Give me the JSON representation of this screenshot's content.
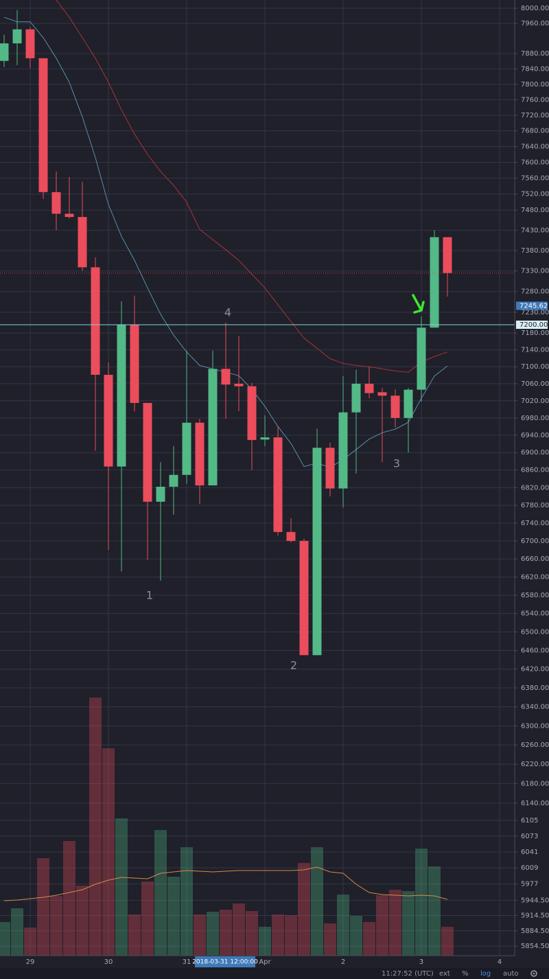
{
  "chart_data": {
    "type": "candlestick",
    "log_scale": true,
    "grid": true,
    "up_color": "#53b987",
    "down_color": "#eb4d5c",
    "background": "#1f2029",
    "grid_color": "#33354a",
    "categories": [
      null,
      null,
      "29",
      null,
      null,
      null,
      null,
      null,
      "30",
      null,
      null,
      null,
      null,
      null,
      "31",
      null,
      null,
      null,
      null,
      null,
      "Apr",
      null,
      null,
      null,
      null,
      null,
      "2",
      null,
      null,
      null,
      null,
      null,
      "3",
      null,
      null,
      null,
      null,
      null,
      "4"
    ],
    "open": [
      7861,
      7907,
      7944,
      7868,
      7525,
      7471,
      7463,
      7339,
      7081,
      6868,
      7200,
      7015,
      6788,
      6822,
      6849,
      6969,
      6825,
      7095,
      7060,
      7054,
      6930,
      6935,
      6720,
      6700,
      6450,
      6911,
      6818,
      6993,
      7060,
      7040,
      7032,
      6980,
      7046,
      7193,
      7413,
      null,
      null,
      null,
      null
    ],
    "high": [
      7930,
      7995,
      7950,
      7868,
      7577,
      7563,
      7551,
      7363,
      7110,
      7256,
      7270,
      7015,
      6878,
      6915,
      7138,
      6978,
      7138,
      7205,
      7173,
      7062,
      6986,
      6961,
      6751,
      6705,
      6955,
      6923,
      7078,
      7093,
      7101,
      7050,
      7047,
      7050,
      7220,
      7430,
      7413,
      null,
      null,
      null,
      null
    ],
    "low": [
      7845,
      7850,
      7842,
      7508,
      7430,
      7459,
      7330,
      6904,
      6680,
      6632,
      6995,
      6658,
      6612,
      6759,
      6829,
      6783,
      6825,
      6978,
      6996,
      6860,
      6915,
      6712,
      6697,
      6450,
      6450,
      6800,
      6775,
      6852,
      7026,
      6878,
      6958,
      6900,
      7018,
      7193,
      7268,
      null,
      null,
      null,
      null
    ],
    "close": [
      7907,
      7944,
      7868,
      7525,
      7471,
      7463,
      7339,
      7081,
      6868,
      7200,
      7015,
      6788,
      6822,
      6849,
      6969,
      6825,
      7095,
      7058,
      7054,
      6929,
      6935,
      6720,
      6700,
      6450,
      6911,
      6818,
      6993,
      7060,
      7038,
      7032,
      6980,
      7046,
      7193,
      7413,
      7325,
      null,
      null,
      null,
      null
    ],
    "moving_averages": [
      {
        "color": "#5a8fae",
        "values": [
          7976,
          7964,
          7964,
          7922,
          7868,
          7805,
          7716,
          7612,
          7494,
          7415,
          7356,
          7289,
          7225,
          7175,
          7135,
          7103,
          7095,
          7087,
          7079,
          7047,
          7007,
          6960,
          6921,
          6868,
          6876,
          6866,
          6884,
          6907,
          6931,
          6946,
          6954,
          6970,
          7026,
          7078,
          7102,
          null,
          null,
          null,
          null
        ]
      },
      {
        "color": "#a8343a",
        "values": [
          null,
          null,
          null,
          null,
          8022,
          7976,
          7922,
          7868,
          7805,
          7734,
          7672,
          7620,
          7577,
          7542,
          7500,
          7432,
          7407,
          7382,
          7356,
          7322,
          7289,
          7248,
          7208,
          7168,
          7144,
          7119,
          7108,
          7103,
          7100,
          7095,
          7090,
          7087,
          7111,
          7124,
          7135,
          null,
          null,
          null,
          null
        ]
      }
    ],
    "volume": {
      "values": [
        49,
        69,
        41,
        142,
        87,
        167,
        102,
        376,
        302,
        200,
        60,
        108,
        183,
        115,
        158,
        60,
        64,
        67,
        76,
        65,
        42,
        60,
        59,
        135,
        158,
        47,
        89,
        58,
        49,
        88,
        96,
        94,
        156,
        130,
        42,
        null,
        null,
        null,
        null
      ],
      "ma_color": "#d9894a",
      "ma_values": [
        80,
        81,
        83,
        85,
        88,
        92,
        96,
        104,
        110,
        114,
        113,
        112,
        120,
        122,
        124,
        123,
        122,
        123,
        124,
        124,
        124,
        124,
        124,
        125,
        129,
        122,
        120,
        104,
        92,
        89,
        88,
        87,
        88,
        87,
        82,
        null,
        null,
        null,
        null
      ]
    },
    "ylim": [
      5836,
      8022
    ],
    "yticks": [
      {
        "value": 8000,
        "label": "8000.00"
      },
      {
        "value": 7960,
        "label": "7960.00"
      },
      {
        "value": 7880,
        "label": "7880.00"
      },
      {
        "value": 7840,
        "label": "7840.00"
      },
      {
        "value": 7800,
        "label": "7800.00"
      },
      {
        "value": 7760,
        "label": "7760.00"
      },
      {
        "value": 7720,
        "label": "7720.00"
      },
      {
        "value": 7680,
        "label": "7680.00"
      },
      {
        "value": 7640,
        "label": "7640.00"
      },
      {
        "value": 7600,
        "label": "7600.00"
      },
      {
        "value": 7560,
        "label": "7560.00"
      },
      {
        "value": 7520,
        "label": "7520.00"
      },
      {
        "value": 7480,
        "label": "7480.00"
      },
      {
        "value": 7430,
        "label": "7430.00"
      },
      {
        "value": 7380,
        "label": "7380.00"
      },
      {
        "value": 7330,
        "label": "7330.00"
      },
      {
        "value": 7280,
        "label": "7280.00"
      },
      {
        "value": 7230,
        "label": "7230.00"
      },
      {
        "value": 7180,
        "label": "7180.00"
      },
      {
        "value": 7140,
        "label": "7140.00"
      },
      {
        "value": 7100,
        "label": "7100.00"
      },
      {
        "value": 7060,
        "label": "7060.00"
      },
      {
        "value": 7020,
        "label": "7020.00"
      },
      {
        "value": 6980,
        "label": "6980.00"
      },
      {
        "value": 6940,
        "label": "6940.00"
      },
      {
        "value": 6900,
        "label": "6900.00"
      },
      {
        "value": 6860,
        "label": "6860.00"
      },
      {
        "value": 6820,
        "label": "6820.00"
      },
      {
        "value": 6780,
        "label": "6780.00"
      },
      {
        "value": 6740,
        "label": "6740.00"
      },
      {
        "value": 6700,
        "label": "6700.00"
      },
      {
        "value": 6660,
        "label": "6660.00"
      },
      {
        "value": 6620,
        "label": "6620.00"
      },
      {
        "value": 6580,
        "label": "6580.00"
      },
      {
        "value": 6540,
        "label": "6540.00"
      },
      {
        "value": 6500,
        "label": "6500.00"
      },
      {
        "value": 6460,
        "label": "6460.00"
      },
      {
        "value": 6420,
        "label": "6420.00"
      },
      {
        "value": 6380,
        "label": "6380.00"
      },
      {
        "value": 6340,
        "label": "6340.00"
      },
      {
        "value": 6300,
        "label": "6300.00"
      },
      {
        "value": 6260,
        "label": "6260.00"
      },
      {
        "value": 6220,
        "label": "6220.00"
      },
      {
        "value": 6180,
        "label": "6180.00"
      },
      {
        "value": 6140,
        "label": "6140.00"
      },
      6105,
      6073,
      6041,
      6009,
      5977,
      {
        "value": 5944.5,
        "label": "5944.50"
      },
      {
        "value": 5914.5,
        "label": "5914.50"
      },
      {
        "value": 5884.5,
        "label": "5884.50"
      },
      {
        "value": 5854.5,
        "label": "5854.50"
      }
    ],
    "horizontal_line": {
      "value": 7200,
      "label": "7200.00",
      "color": "#7fd6e3"
    },
    "crosshair": {
      "price": 7245.62,
      "time_label": "2018-03-31 12:00:00",
      "color": "#3f7ab8"
    },
    "annotations": [
      {
        "text": "1"
      },
      {
        "text": "2"
      },
      {
        "text": "3"
      },
      {
        "text": "4"
      }
    ]
  },
  "toolbar": {
    "time": "11:27:52 (UTC)",
    "ext": "ext",
    "percent": "%",
    "log": "log",
    "auto": "auto"
  }
}
